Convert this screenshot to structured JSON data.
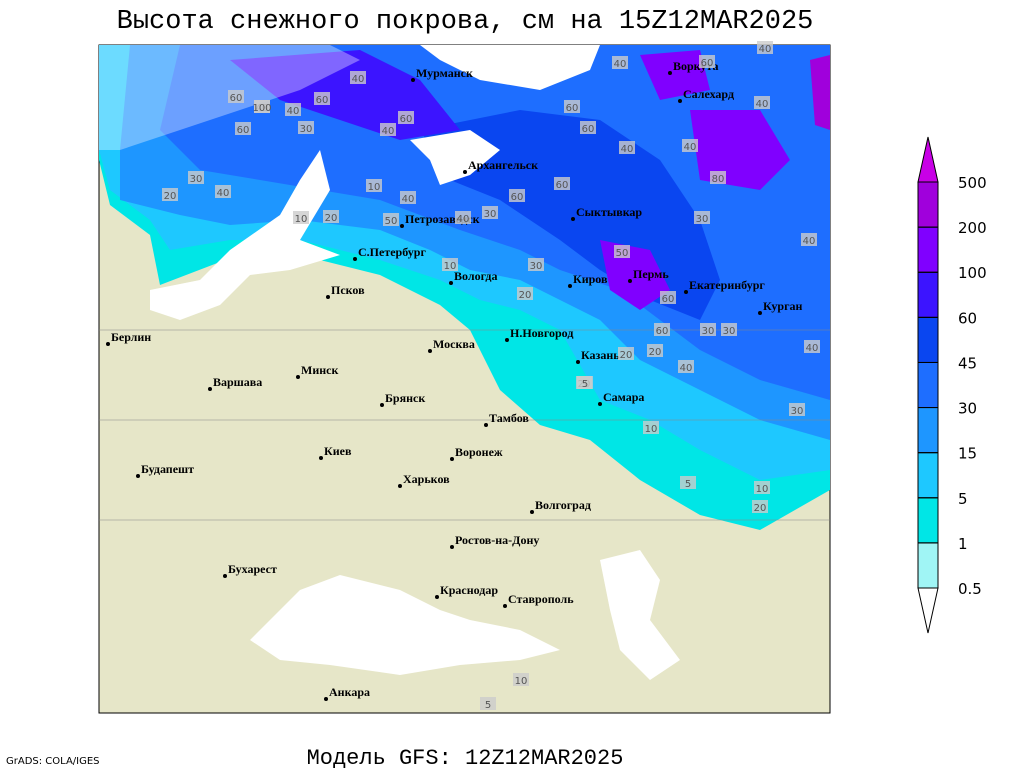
{
  "header": {
    "title": "Высота снежного покрова, см на 15Z12MAR2025",
    "subtitle": "Модель GFS: 12Z12MAR2025",
    "credit": "GrADS: COLA/IGES"
  },
  "cities": [
    "Мурманск",
    "Воркута",
    "Салехард",
    "Архангельск",
    "Сыктывкар",
    "Петрозаводск",
    "С.Петербург",
    "Вологда",
    "Киров",
    "Пермь",
    "Екатеринбург",
    "Курган",
    "Псков",
    "Берлин",
    "Н.Новгород",
    "Москва",
    "Казань",
    "Минск",
    "Варшава",
    "Самара",
    "Брянск",
    "Тамбов",
    "Киев",
    "Воронеж",
    "Будапешт",
    "Харьков",
    "Волгоград",
    "Ростов-на-Дону",
    "Бухарест",
    "Краснодар",
    "Ставрополь",
    "Анкара"
  ],
  "contour_labels": [
    40,
    60,
    40,
    100,
    40,
    60,
    60,
    30,
    40,
    60,
    60,
    40,
    60,
    40,
    40,
    60,
    20,
    30,
    40,
    40,
    10,
    20,
    50,
    40,
    40,
    30,
    60,
    60,
    40,
    80,
    30,
    40,
    10,
    30,
    20,
    50,
    60,
    20,
    60,
    30,
    30,
    40,
    20,
    20,
    5,
    10,
    30,
    40,
    10,
    5,
    20,
    10,
    5,
    10
  ],
  "legend": {
    "levels": [
      0.5,
      1,
      5,
      15,
      30,
      45,
      60,
      100,
      200,
      500
    ],
    "colors": [
      "#ffffff",
      "#a0f5f5",
      "#00e6e6",
      "#1ec8ff",
      "#1e96ff",
      "#1e6eff",
      "#0a46f0",
      "#3c14ff",
      "#8000ff",
      "#a000dc",
      "#c800e6"
    ]
  }
}
